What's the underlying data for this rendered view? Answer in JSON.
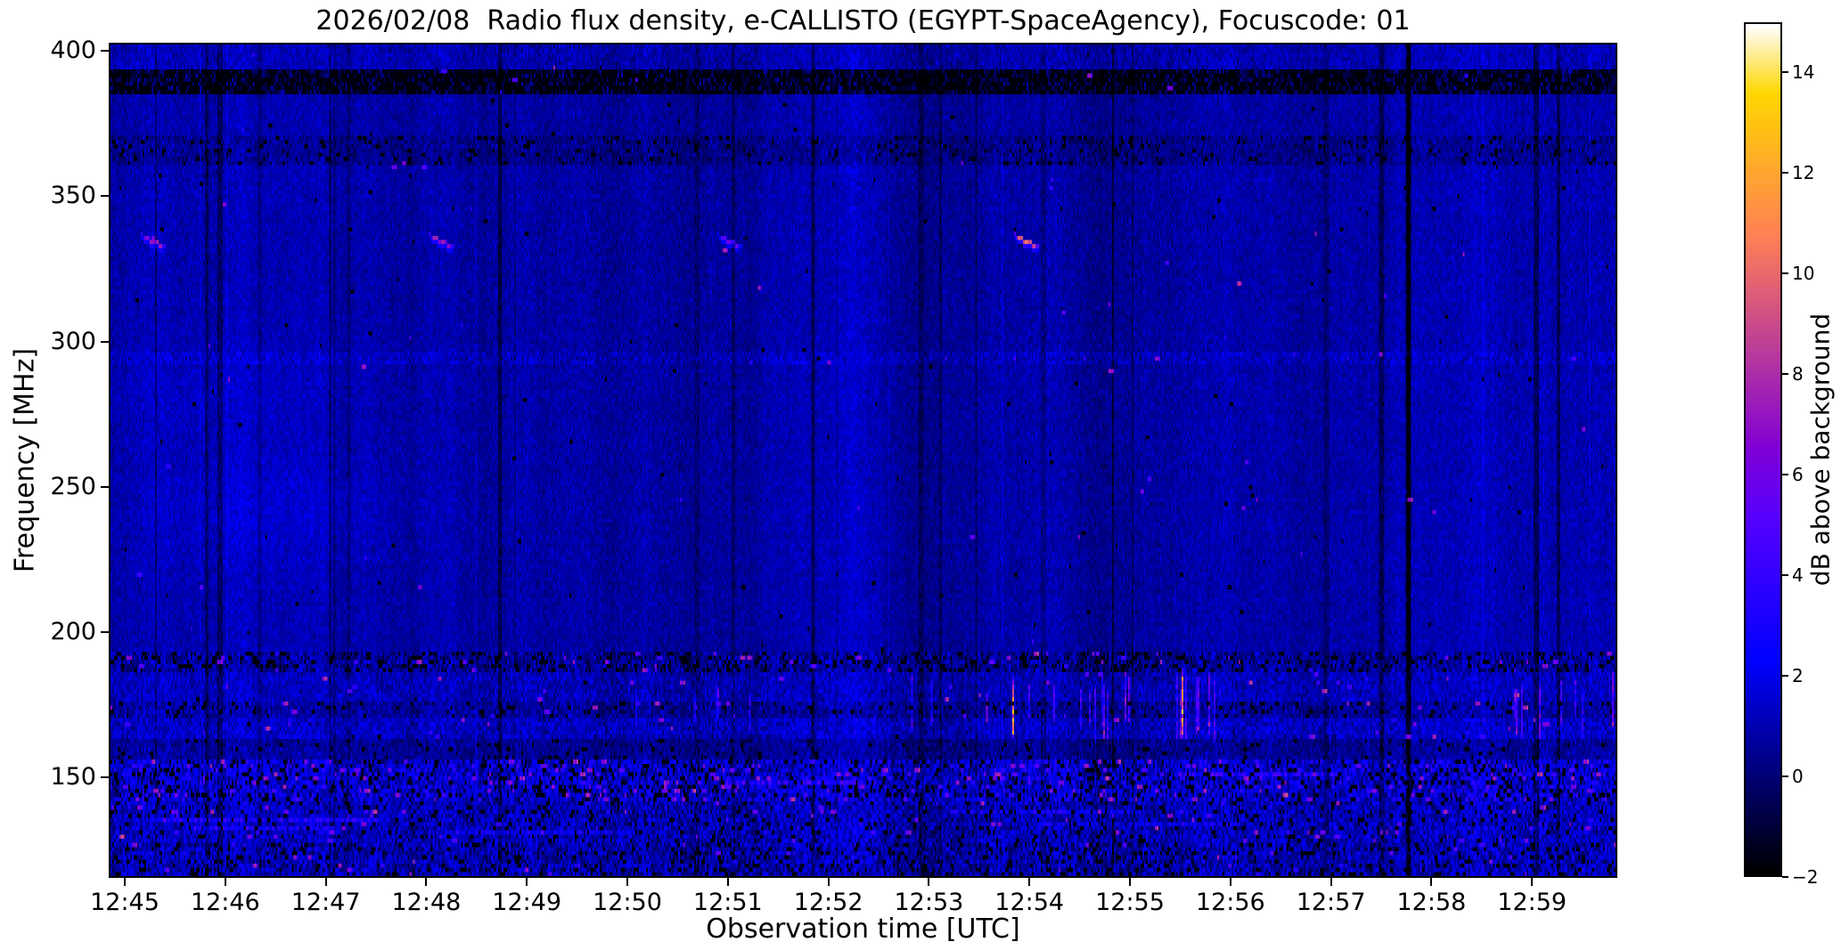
{
  "chart_data": {
    "type": "heatmap",
    "title": "2026/02/08  Radio flux density, e-CALLISTO (EGYPT-SpaceAgency), Focuscode: 01",
    "xlabel": "Observation time [UTC]",
    "ylabel": "Frequency [MHz]",
    "x_ticks": [
      "12:45",
      "12:46",
      "12:47",
      "12:48",
      "12:49",
      "12:50",
      "12:51",
      "12:52",
      "12:53",
      "12:54",
      "12:55",
      "12:56",
      "12:57",
      "12:58",
      "12:59"
    ],
    "x_range_utc": [
      "12:45",
      "13:00"
    ],
    "y_ticks": [
      400,
      350,
      300,
      250,
      200,
      150
    ],
    "freq_range_mhz": [
      402.8,
      115.4
    ],
    "grid": false,
    "colorbar": {
      "label": "dB above background",
      "ticks": [
        14,
        12,
        10,
        8,
        6,
        4,
        2,
        0,
        -2
      ],
      "vmin": -2,
      "vmax": 15,
      "colormap": "gnuplot2",
      "colors": {
        "low": "#000000",
        "mid_blue": "#0000ee",
        "magenta": "#c03fa0",
        "high": "#ffffff"
      }
    },
    "background_level_db": 0.9,
    "features": {
      "description": "Mostly dark-blue background noise with vertical instrumental striping",
      "bright_noise_band_mhz": [
        116,
        157
      ],
      "interference_band_mhz": [
        162,
        192
      ],
      "excised_dark_channels_mhz": [
        390,
        367
      ],
      "slanted_bright_streaks": {
        "freq_mhz": 335,
        "approx_times": [
          "12:45",
          "12:48",
          "12:51",
          "12:54"
        ]
      },
      "vertical_pink_bursts_times": [
        "12:53",
        "12:57",
        "12:59"
      ],
      "dark_vertical_line_time": "12:58"
    }
  }
}
